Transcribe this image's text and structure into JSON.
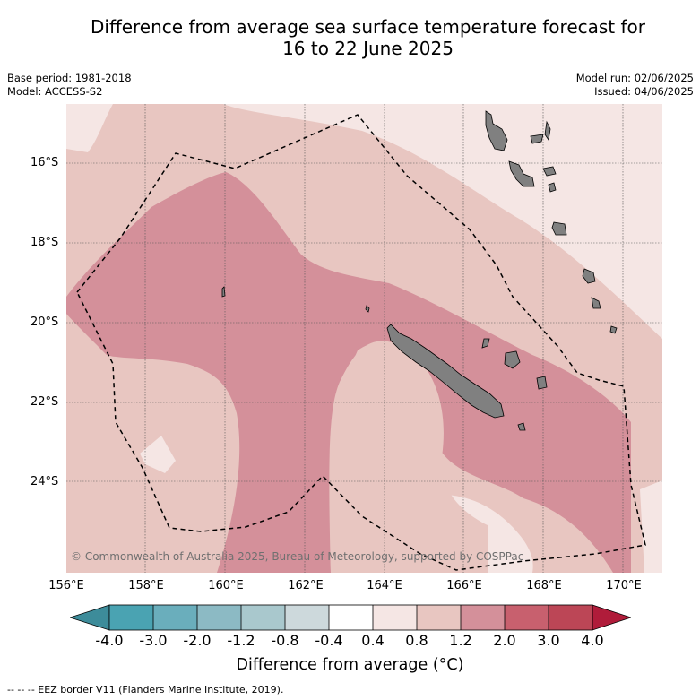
{
  "title_line1": "Difference from average sea surface temperature forecast for",
  "title_line2": "16 to 22 June 2025",
  "base_period": "Base period: 1981-2018",
  "model": "Model: ACCESS-S2",
  "model_run": "Model run: 02/06/2025",
  "issued": "Issued: 04/06/2025",
  "lat_labels": [
    "16°S",
    "18°S",
    "20°S",
    "22°S",
    "24°S"
  ],
  "lon_labels": [
    "156°E",
    "158°E",
    "160°E",
    "162°E",
    "164°E",
    "166°E",
    "168°E",
    "170°E"
  ],
  "copyright": "© Commonwealth of Australia 2025, Bureau of Meteorology, supported by COSPPac",
  "colorbar": {
    "ticks": [
      "-4.0",
      "-3.0",
      "-2.0",
      "-1.2",
      "-0.8",
      "-0.4",
      "0.4",
      "0.8",
      "1.2",
      "2.0",
      "3.0",
      "4.0"
    ],
    "colors": [
      "#3d8c9a",
      "#4aa3b2",
      "#6aaebc",
      "#8cbac4",
      "#a9c8cd",
      "#cdd9dc",
      "#ffffff",
      "#f5e6e4",
      "#e8c6c1",
      "#d4909a",
      "#c8606e",
      "#bc4656",
      "#b01c3a"
    ],
    "label": "Difference from average (°C)"
  },
  "legend_text": "--  --  -- EEZ border V11 (Flanders Marine Institute, 2019).",
  "colors": {
    "land": "#808080",
    "eez": "#000000"
  }
}
